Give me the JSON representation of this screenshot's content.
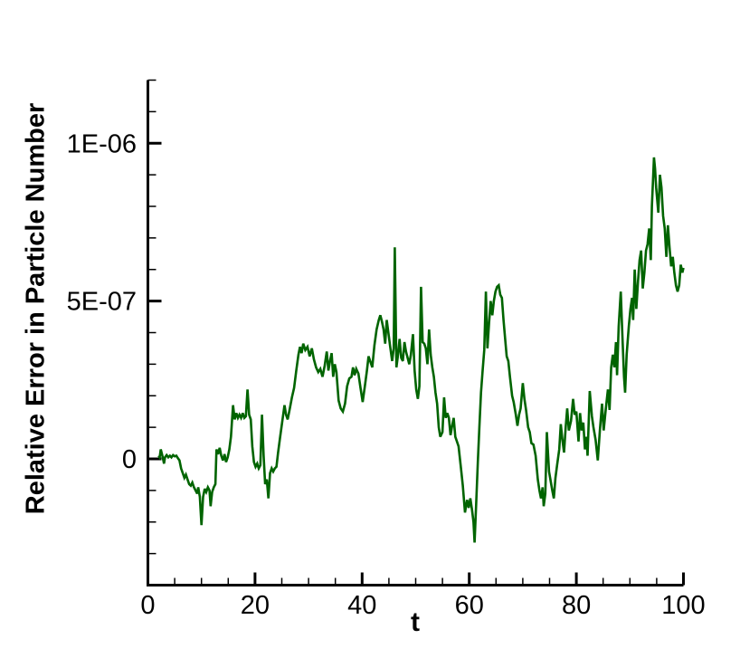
{
  "figure": {
    "background": "#ffffff"
  },
  "chart_data": {
    "type": "line",
    "title": "",
    "xlabel": "t",
    "ylabel": "Relative Error in Particle Number",
    "xlim": [
      0,
      100
    ],
    "ylim": [
      -4e-07,
      1.2e-06
    ],
    "grid": false,
    "legend": null,
    "line_color": "#006400",
    "axis_color": "#000000",
    "x_major_ticks": [
      0,
      20,
      40,
      60,
      80,
      100
    ],
    "x_major_labels": [
      "0",
      "20",
      "40",
      "60",
      "80",
      "100"
    ],
    "x_minor_step": 5,
    "y_major_ticks": [
      0,
      5e-07,
      1e-06
    ],
    "y_major_labels": [
      "0",
      "5E-07",
      "1E-06"
    ],
    "y_minor_step": 1e-07,
    "y_scale": 1e-07,
    "series": [
      {
        "name": "relative-error-in-particle-number",
        "x": [
          2.0,
          2.2,
          2.4,
          2.7,
          3.0,
          3.2,
          3.5,
          3.8,
          4.1,
          4.4,
          4.7,
          5.0,
          5.3,
          5.6,
          5.9,
          6.2,
          6.5,
          6.8,
          7.1,
          7.4,
          7.7,
          8.0,
          8.3,
          8.6,
          8.9,
          9.2,
          9.4,
          9.7,
          10.0,
          10.3,
          10.6,
          10.9,
          11.2,
          11.5,
          11.7,
          12.0,
          12.3,
          12.6,
          12.8,
          13.1,
          13.4,
          13.7,
          14.0,
          14.3,
          14.6,
          14.9,
          15.2,
          15.5,
          15.9,
          16.2,
          16.5,
          16.8,
          17.1,
          17.4,
          17.7,
          18.0,
          18.3,
          18.6,
          18.9,
          19.2,
          19.5,
          19.8,
          20.1,
          20.4,
          20.7,
          21.0,
          21.3,
          21.6,
          21.9,
          22.2,
          22.5,
          22.8,
          23.1,
          23.4,
          23.7,
          24.0,
          24.3,
          24.7,
          25.1,
          25.5,
          25.8,
          26.1,
          26.5,
          26.9,
          27.3,
          27.7,
          28.1,
          28.4,
          28.7,
          29.0,
          29.4,
          29.8,
          30.2,
          30.6,
          31.0,
          31.4,
          31.8,
          32.2,
          32.6,
          33.0,
          33.4,
          33.7,
          34.0,
          34.3,
          34.6,
          34.9,
          35.2,
          35.6,
          36.0,
          36.4,
          36.8,
          37.2,
          37.6,
          38.0,
          38.3,
          38.6,
          38.9,
          39.3,
          39.7,
          40.1,
          40.5,
          40.9,
          41.2,
          41.5,
          41.9,
          42.3,
          42.7,
          43.1,
          43.4,
          43.7,
          44.0,
          44.3,
          44.6,
          44.9,
          45.2,
          45.6,
          45.9,
          46.1,
          46.4,
          46.7,
          47.0,
          47.3,
          47.6,
          47.9,
          48.2,
          48.5,
          48.8,
          49.1,
          49.5,
          49.8,
          50.1,
          50.4,
          50.7,
          51.0,
          51.3,
          51.6,
          51.9,
          52.2,
          52.5,
          52.8,
          53.1,
          53.4,
          53.7,
          54.0,
          54.3,
          54.6,
          55.0,
          55.3,
          55.6,
          55.9,
          56.2,
          56.5,
          56.8,
          57.1,
          57.4,
          57.7,
          58.0,
          58.4,
          58.8,
          59.2,
          59.6,
          59.9,
          60.2,
          60.5,
          60.8,
          61.0,
          61.3,
          61.6,
          61.9,
          62.2,
          62.5,
          62.8,
          63.1,
          63.4,
          63.7,
          64.0,
          64.3,
          64.6,
          64.9,
          65.2,
          65.5,
          65.8,
          66.1,
          66.4,
          66.7,
          67.0,
          67.3,
          67.6,
          68.0,
          68.3,
          68.7,
          69.0,
          69.3,
          69.6,
          70.0,
          70.3,
          70.6,
          71.0,
          71.3,
          71.6,
          72.0,
          72.4,
          72.8,
          73.1,
          73.4,
          73.7,
          73.9,
          74.2,
          74.5,
          74.9,
          75.2,
          75.5,
          75.8,
          76.1,
          76.4,
          76.8,
          77.1,
          77.4,
          77.7,
          78.0,
          78.3,
          78.6,
          79.0,
          79.4,
          79.7,
          80.0,
          80.4,
          80.7,
          81.0,
          81.3,
          81.6,
          81.9,
          82.1,
          82.5,
          82.9,
          83.2,
          83.6,
          84.0,
          84.4,
          84.8,
          85.1,
          85.5,
          85.9,
          86.2,
          86.5,
          86.8,
          87.1,
          87.4,
          87.6,
          87.9,
          88.3,
          88.6,
          88.9,
          89.1,
          89.4,
          89.8,
          90.1,
          90.4,
          90.6,
          90.9,
          91.2,
          91.5,
          91.8,
          92.1,
          92.4,
          92.7,
          93.0,
          93.3,
          93.6,
          93.9,
          94.1,
          94.3,
          94.5,
          94.7,
          94.9,
          95.1,
          95.3,
          95.6,
          95.9,
          96.2,
          96.5,
          96.8,
          97.1,
          97.4,
          97.7,
          98.0,
          98.3,
          98.6,
          98.9,
          99.2,
          99.5,
          99.8,
          100.0
        ],
        "y": [
          0.1,
          0.05,
          0.3,
          0.1,
          -0.15,
          0.05,
          0.12,
          0.05,
          0.1,
          0.05,
          0.12,
          0.08,
          0.1,
          0.02,
          -0.05,
          -0.3,
          -0.45,
          -0.6,
          -0.5,
          -0.65,
          -0.8,
          -0.85,
          -0.75,
          -0.9,
          -1.0,
          -1.1,
          -0.9,
          -1.2,
          -2.1,
          -1.2,
          -0.95,
          -1.05,
          -0.9,
          -1.0,
          -1.5,
          -1.05,
          -0.9,
          -0.8,
          0.3,
          0.15,
          0.35,
          0.1,
          -0.05,
          0.15,
          -0.1,
          0.05,
          0.3,
          0.7,
          1.7,
          1.25,
          1.45,
          1.3,
          1.4,
          1.3,
          1.45,
          1.3,
          1.35,
          2.2,
          1.4,
          1.25,
          0.4,
          -0.1,
          -0.25,
          -0.15,
          -0.3,
          -0.2,
          1.4,
          0.1,
          -0.8,
          -0.65,
          -1.25,
          -0.45,
          -0.3,
          -0.4,
          -0.3,
          -0.25,
          0.2,
          0.7,
          1.2,
          1.7,
          1.4,
          1.25,
          1.6,
          1.95,
          2.25,
          2.8,
          3.3,
          3.55,
          3.35,
          3.65,
          3.45,
          3.55,
          3.25,
          3.5,
          3.15,
          2.9,
          2.75,
          2.85,
          2.6,
          2.95,
          3.4,
          2.8,
          3.1,
          3.35,
          2.6,
          3.0,
          2.75,
          1.85,
          1.6,
          1.5,
          1.75,
          2.3,
          2.55,
          2.6,
          2.9,
          2.65,
          2.85,
          2.7,
          2.25,
          1.8,
          2.3,
          2.8,
          3.25,
          3.1,
          2.9,
          3.6,
          4.1,
          4.4,
          4.55,
          4.35,
          4.1,
          3.65,
          4.4,
          4.0,
          3.6,
          3.1,
          3.5,
          6.7,
          2.9,
          3.3,
          3.8,
          3.2,
          3.1,
          3.7,
          3.4,
          3.2,
          3.0,
          3.3,
          3.95,
          2.8,
          2.2,
          1.9,
          2.3,
          5.45,
          3.7,
          3.65,
          3.5,
          3.0,
          4.1,
          3.3,
          2.9,
          2.6,
          2.1,
          1.75,
          1.0,
          0.7,
          0.85,
          1.95,
          1.3,
          1.45,
          1.3,
          0.75,
          1.05,
          1.3,
          0.7,
          0.55,
          0.4,
          -0.2,
          -0.85,
          -1.7,
          -1.3,
          -1.55,
          -1.25,
          -1.6,
          -2.0,
          -2.65,
          -1.4,
          -0.1,
          1.0,
          2.1,
          2.8,
          3.45,
          5.3,
          3.5,
          4.3,
          5.0,
          4.55,
          5.0,
          5.3,
          5.45,
          5.5,
          5.2,
          5.1,
          4.4,
          3.8,
          3.25,
          3.1,
          2.6,
          2.0,
          1.8,
          1.4,
          1.05,
          1.4,
          1.6,
          2.4,
          1.9,
          1.55,
          1.0,
          0.85,
          0.5,
          0.45,
          0.1,
          -0.65,
          -1.0,
          -1.25,
          -0.9,
          -1.5,
          -1.1,
          0.85,
          -0.4,
          -0.7,
          -1.0,
          -1.25,
          -0.6,
          -0.2,
          0.3,
          1.1,
          0.6,
          0.2,
          1.0,
          1.6,
          0.9,
          1.2,
          1.9,
          1.4,
          1.5,
          0.55,
          1.45,
          0.9,
          1.15,
          0.3,
          0.7,
          0.1,
          2.15,
          1.35,
          1.0,
          0.6,
          -0.05,
          0.9,
          1.75,
          0.9,
          1.6,
          2.2,
          1.55,
          2.9,
          3.3,
          2.9,
          3.7,
          2.65,
          4.2,
          5.3,
          3.9,
          2.6,
          2.1,
          3.3,
          4.2,
          4.75,
          5.1,
          4.4,
          6.0,
          4.75,
          5.6,
          6.3,
          6.6,
          5.4,
          5.9,
          6.6,
          6.8,
          7.3,
          6.3,
          8.0,
          8.8,
          9.55,
          9.2,
          8.6,
          8.2,
          7.8,
          9.0,
          8.6,
          7.7,
          7.3,
          6.4,
          7.4,
          6.7,
          6.1,
          6.4,
          5.9,
          5.5,
          5.3,
          5.5,
          6.15,
          5.9,
          6.05
        ]
      }
    ]
  }
}
